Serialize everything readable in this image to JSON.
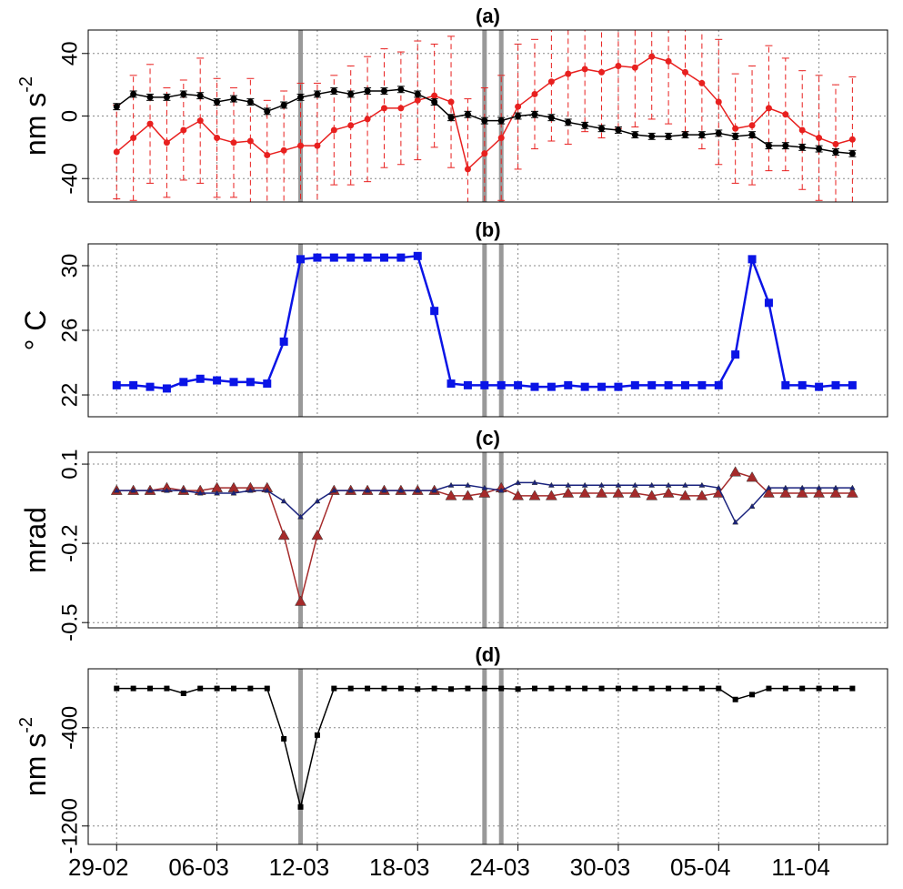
{
  "chart_data": [
    {
      "type": "line",
      "title": "(a)",
      "ylabel": {
        "text": "nm s",
        "sup": "-2"
      },
      "ylim": [
        -55,
        55
      ],
      "yticks": [
        -40,
        0,
        40
      ],
      "xlim": [
        -1.7,
        46.1
      ],
      "vlines": [
        11,
        22,
        23
      ],
      "x": [
        0,
        1,
        2,
        3,
        4,
        5,
        6,
        7,
        8,
        9,
        10,
        11,
        12,
        13,
        14,
        15,
        16,
        17,
        18,
        19,
        20,
        21,
        22,
        23,
        24,
        25,
        26,
        27,
        28,
        29,
        30,
        31,
        32,
        33,
        34,
        35,
        36,
        37,
        38,
        39,
        40,
        41,
        42,
        43,
        44
      ],
      "series": [
        {
          "color": "#e8201f",
          "marker": "circle",
          "size": 3.5,
          "values": [
            -23,
            -14,
            -5,
            -17,
            -9,
            -3,
            -14,
            -17,
            -16,
            -25,
            -22,
            -19,
            -19,
            -9,
            -6,
            -2,
            5,
            5,
            10,
            13,
            9,
            -34,
            -24,
            -14,
            6,
            14,
            22,
            27,
            30,
            28,
            32,
            31,
            38,
            35,
            28,
            21,
            9,
            -8,
            -6,
            5,
            1,
            -9,
            -14,
            -18,
            -15
          ],
          "errors": [
            30,
            40,
            38,
            35,
            32,
            40,
            38,
            35,
            40,
            35,
            38,
            40,
            40,
            35,
            38,
            40,
            38,
            36,
            38,
            33,
            42,
            45,
            42,
            40,
            40,
            35,
            38,
            45,
            40,
            42,
            40,
            38,
            40,
            40,
            38,
            42,
            40,
            35,
            38,
            40,
            36,
            38,
            40,
            38,
            40
          ]
        },
        {
          "color": "#000000",
          "marker": "circle",
          "size": 3.5,
          "values": [
            6,
            14,
            12,
            12,
            14,
            13,
            9,
            11,
            9,
            3,
            7,
            12,
            14,
            16,
            14,
            16,
            16,
            17,
            14,
            9,
            -1,
            1,
            -3,
            -3,
            0,
            1,
            -1,
            -4,
            -6,
            -8,
            -9,
            -12,
            -13,
            -13,
            -12,
            -12,
            -11,
            -13,
            -12,
            -19,
            -19,
            -20,
            -21,
            -23,
            -24
          ],
          "errors": [
            2,
            2,
            2,
            2,
            2,
            2,
            2,
            2,
            2,
            2,
            2,
            2,
            2,
            2,
            2,
            2,
            2,
            2,
            2,
            2,
            2,
            2,
            2,
            2,
            2,
            2,
            2,
            2,
            2,
            2,
            2,
            2,
            2,
            2,
            2,
            2,
            2,
            2,
            2,
            2,
            2,
            2,
            2,
            2,
            2
          ]
        }
      ]
    },
    {
      "type": "line",
      "title": "(b)",
      "ylabel": {
        "text": "° C"
      },
      "ylim": [
        20.65,
        31.35
      ],
      "yticks": [
        22,
        26,
        30
      ],
      "xlim": [
        -1.7,
        46.1
      ],
      "vlines": [
        11,
        22,
        23
      ],
      "x": [
        0,
        1,
        2,
        3,
        4,
        5,
        6,
        7,
        8,
        9,
        10,
        11,
        12,
        13,
        14,
        15,
        16,
        17,
        18,
        19,
        20,
        21,
        22,
        23,
        24,
        25,
        26,
        27,
        28,
        29,
        30,
        31,
        32,
        33,
        34,
        35,
        36,
        37,
        38,
        39,
        40,
        41,
        42,
        43,
        44
      ],
      "series": [
        {
          "color": "#0a14e6",
          "marker": "square",
          "size": 4.5,
          "width": 2.5,
          "values": [
            22.6,
            22.6,
            22.5,
            22.4,
            22.8,
            23.0,
            22.9,
            22.8,
            22.8,
            22.7,
            25.3,
            30.4,
            30.5,
            30.5,
            30.5,
            30.5,
            30.5,
            30.5,
            30.6,
            27.2,
            22.7,
            22.6,
            22.6,
            22.6,
            22.6,
            22.5,
            22.5,
            22.6,
            22.5,
            22.5,
            22.5,
            22.6,
            22.6,
            22.6,
            22.6,
            22.6,
            22.6,
            24.5,
            30.4,
            27.7,
            22.6,
            22.6,
            22.5,
            22.6,
            22.6
          ]
        }
      ]
    },
    {
      "type": "line",
      "title": "(c)",
      "ylabel": {
        "text": "mrad"
      },
      "ylim": [
        -0.52,
        0.145
      ],
      "yticks": [
        0.1,
        -0.2,
        -0.5
      ],
      "xlim": [
        -1.7,
        46.1
      ],
      "vlines": [
        11,
        22,
        23
      ],
      "x": [
        0,
        1,
        2,
        3,
        4,
        5,
        6,
        7,
        8,
        9,
        10,
        11,
        12,
        13,
        14,
        15,
        16,
        17,
        18,
        19,
        20,
        21,
        22,
        23,
        24,
        25,
        26,
        27,
        28,
        29,
        30,
        31,
        32,
        33,
        34,
        35,
        36,
        37,
        38,
        39,
        40,
        41,
        42,
        43,
        44
      ],
      "series": [
        {
          "color": "#a52a2a",
          "marker": "triangle",
          "size": 6,
          "values": [
            0,
            0,
            0,
            0.01,
            0,
            0,
            0.01,
            0.01,
            0.01,
            0.01,
            -0.17,
            -0.42,
            -0.17,
            0,
            0,
            0,
            0,
            0,
            0,
            0,
            -0.02,
            -0.02,
            -0.01,
            0.01,
            -0.02,
            -0.02,
            -0.02,
            -0.01,
            -0.01,
            -0.01,
            -0.01,
            -0.01,
            -0.02,
            -0.01,
            -0.02,
            -0.02,
            -0.01,
            0.07,
            0.05,
            -0.01,
            -0.01,
            -0.01,
            -0.01,
            -0.01,
            -0.01
          ]
        },
        {
          "color": "#1a237e",
          "marker": "triangle",
          "size": 3,
          "values": [
            0,
            0,
            0,
            0,
            0,
            -0.01,
            -0.01,
            -0.01,
            0,
            0,
            -0.04,
            -0.1,
            -0.04,
            0,
            0,
            0,
            0,
            0,
            0,
            0,
            0.02,
            0.02,
            0.01,
            0,
            0.03,
            0.03,
            0.02,
            0.02,
            0.02,
            0.02,
            0.02,
            0.02,
            0.02,
            0.02,
            0.02,
            0.02,
            0.01,
            -0.12,
            -0.06,
            0.01,
            0.01,
            0.01,
            0.01,
            0.01,
            0.01
          ]
        }
      ]
    },
    {
      "type": "line",
      "title": "(d)",
      "ylabel": {
        "text": "nm s",
        "sup": "-2"
      },
      "ylim": [
        -1350,
        80
      ],
      "yticks": [
        -400,
        -1200
      ],
      "xlim": [
        -1.7,
        46.1
      ],
      "vlines": [
        11,
        22,
        23
      ],
      "x": [
        0,
        1,
        2,
        3,
        4,
        5,
        6,
        7,
        8,
        9,
        10,
        11,
        12,
        13,
        14,
        15,
        16,
        17,
        18,
        19,
        20,
        21,
        22,
        23,
        24,
        25,
        26,
        27,
        28,
        29,
        30,
        31,
        32,
        33,
        34,
        35,
        36,
        37,
        38,
        39,
        40,
        41,
        42,
        43,
        44
      ],
      "xticks": [
        {
          "value": 0,
          "label": "29-02"
        },
        {
          "value": 6,
          "label": "06-03"
        },
        {
          "value": 12,
          "label": "12-03"
        },
        {
          "value": 18,
          "label": "18-03"
        },
        {
          "value": 24,
          "label": "24-03"
        },
        {
          "value": 30,
          "label": "30-03"
        },
        {
          "value": 36,
          "label": "05-04"
        },
        {
          "value": 42,
          "label": "11-04"
        }
      ],
      "series": [
        {
          "color": "#000000",
          "marker": "square",
          "size": 3,
          "values": [
            -80,
            -80,
            -80,
            -80,
            -120,
            -80,
            -80,
            -80,
            -80,
            -80,
            -490,
            -1045,
            -460,
            -80,
            -80,
            -80,
            -80,
            -80,
            -85,
            -80,
            -85,
            -80,
            -80,
            -80,
            -85,
            -80,
            -80,
            -80,
            -80,
            -80,
            -80,
            -80,
            -80,
            -80,
            -80,
            -80,
            -80,
            -170,
            -130,
            -80,
            -80,
            -80,
            -80,
            -80,
            -80
          ]
        }
      ]
    }
  ]
}
